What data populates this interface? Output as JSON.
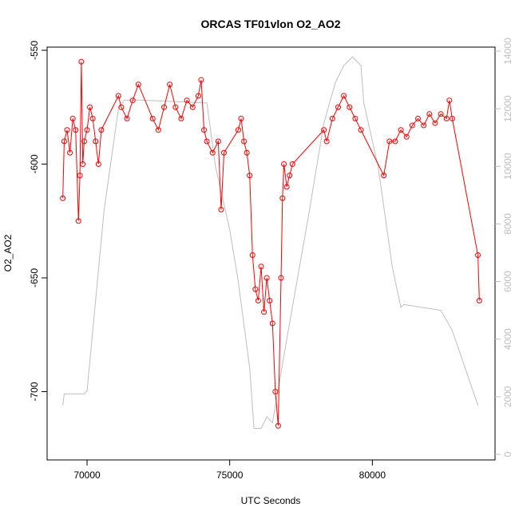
{
  "chart_data": {
    "type": "line",
    "title": "ORCAS TF01vlon O2_AO2",
    "x_label": "UTC Seconds",
    "y_label": "O2_AO2",
    "xlim": [
      68600,
      84300
    ],
    "ylim": [
      -730,
      -548.6
    ],
    "y2lim": [
      -194,
      14139
    ],
    "xticks": [
      70000,
      75000,
      80000
    ],
    "yticks": [
      -700,
      -650,
      -600,
      -550
    ],
    "y2ticks": [
      0,
      2000,
      4000,
      6000,
      8000,
      10000,
      12000,
      14000
    ],
    "series": [
      {
        "color": "#ff0000",
        "markers": true,
        "x": [
          69150,
          69200,
          69300,
          69400,
          69500,
          69600,
          69700,
          69750,
          69800,
          69850,
          69900,
          70000,
          70100,
          70200,
          70300,
          70400,
          70500,
          71100,
          71200,
          71400,
          71600,
          71800,
          72300,
          72500,
          72700,
          72900,
          73100,
          73300,
          73500,
          73700,
          73900,
          74000,
          74100,
          74200,
          74400,
          74600,
          74700,
          74800,
          75300,
          75400,
          75500,
          75600,
          75700,
          75800,
          75900,
          76000,
          76100,
          76200,
          76300,
          76400,
          76500,
          76600,
          76700,
          76800,
          76850,
          76900,
          77000,
          77100,
          77200,
          78300,
          78400,
          78600,
          78800,
          79000,
          79200,
          79400,
          79600,
          80400,
          80600,
          80800,
          81000,
          81200,
          81400,
          81600,
          81800,
          82000,
          82200,
          82400,
          82600,
          82700,
          82800,
          83700,
          83750
        ],
        "values": [
          -615,
          -590,
          -585,
          -595,
          -580,
          -585,
          -625,
          -605,
          -555,
          -600,
          -590,
          -585,
          -575,
          -580,
          -590,
          -600,
          -585,
          -570,
          -575,
          -580,
          -572,
          -565,
          -580,
          -585,
          -575,
          -565,
          -575,
          -580,
          -572,
          -575,
          -570,
          -563,
          -585,
          -590,
          -595,
          -590,
          -620,
          -595,
          -585,
          -580,
          -590,
          -595,
          -605,
          -640,
          -655,
          -660,
          -645,
          -665,
          -650,
          -660,
          -670,
          -700,
          -715,
          -650,
          -615,
          -600,
          -610,
          -605,
          -600,
          -585,
          -590,
          -580,
          -575,
          -570,
          -575,
          -580,
          -585,
          -605,
          -590,
          -590,
          -585,
          -588,
          -583,
          -580,
          -583,
          -578,
          -582,
          -578,
          -580,
          -572,
          -580,
          -640,
          -660
        ]
      },
      {
        "color": "#bebebe",
        "axis": "y2",
        "markers": false,
        "x": [
          69150,
          69200,
          69600,
          69900,
          70000,
          70600,
          71100,
          71300,
          71900,
          74200,
          74500,
          75000,
          75300,
          75700,
          75850,
          76100,
          76300,
          76500,
          77000,
          77800,
          78300,
          78700,
          79000,
          79300,
          79600,
          79700,
          80200,
          80700,
          81000,
          81100,
          82400,
          82800,
          83700
        ],
        "values": [
          1700,
          2100,
          2100,
          2100,
          2200,
          8500,
          12000,
          12300,
          12300,
          12200,
          10000,
          7800,
          6000,
          3000,
          900,
          900,
          1300,
          1100,
          4000,
          8500,
          11500,
          12900,
          13500,
          13800,
          13500,
          12200,
          10000,
          6500,
          5100,
          5200,
          5000,
          4300,
          1700
        ]
      }
    ]
  }
}
